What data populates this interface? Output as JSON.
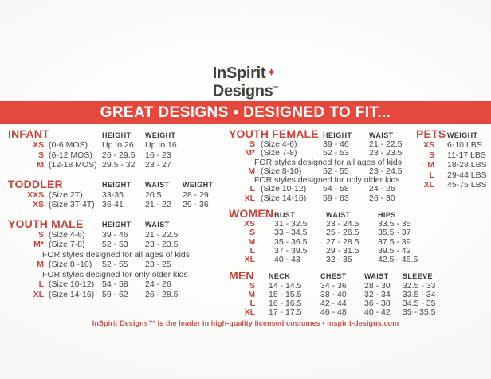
{
  "brand": {
    "line1": "InSpirit",
    "star": "✦",
    "line2": "Designs",
    "tm": "™"
  },
  "banner": {
    "text": "GREAT DESIGNS • DESIGNED TO FIT..."
  },
  "colors": {
    "banner_red": "#e5483c",
    "title_red": "#c3463d",
    "star_red": "#d6453a",
    "text_dark": "#4a4743",
    "head_dark": "#3a3733",
    "footer_red": "#c2564e",
    "logo_dark": "#44413d",
    "paper_light": "#fdfdfc",
    "paper_dark": "#f1f0ed"
  },
  "sections": [
    {
      "id": "infant",
      "title": "INFANT",
      "headers": [
        "HEIGHT",
        "WEIGHT"
      ],
      "rows": [
        {
          "size": "XS",
          "label": "(0-6 MOS)",
          "values": [
            "Up to 26",
            "Up to 16"
          ]
        },
        {
          "size": "S",
          "label": "(6-12 MOS)",
          "values": [
            "26 - 29.5",
            "16 - 23"
          ]
        },
        {
          "size": "M",
          "label": "(12-18 MOS)",
          "values": [
            "29.5 - 32",
            "23 - 27"
          ]
        }
      ]
    },
    {
      "id": "toddler",
      "title": "TODDLER",
      "headers": [
        "HEIGHT",
        "WAIST",
        "WEIGHT"
      ],
      "rows": [
        {
          "size": "XXS",
          "label": "(Size 2T)",
          "values": [
            "33-35",
            "20.5",
            "28 - 29"
          ]
        },
        {
          "size": "XS",
          "label": "(Size 3T-4T)",
          "values": [
            "36-41",
            "21 - 22",
            "29 - 36"
          ]
        }
      ]
    },
    {
      "id": "youth_male",
      "title": "YOUTH MALE",
      "headers": [
        "HEIGHT",
        "WAIST"
      ],
      "rows": [
        {
          "size": "S",
          "label": "(Size 4-6)",
          "values": [
            "39 - 46",
            "21 - 22.5"
          ]
        },
        {
          "size": "M*",
          "label": "(Size 7-8)",
          "values": [
            "52 - 53",
            "23 - 23.5"
          ]
        },
        {
          "note": "FOR styles designed for all ages of kids"
        },
        {
          "size": "M",
          "label": "(Size 8 -10)",
          "values": [
            "52 - 55",
            "23 - 25"
          ]
        },
        {
          "note": "FOR styles designed for only older kids"
        },
        {
          "size": "L",
          "label": "(Size 10-12)",
          "values": [
            "54 - 58",
            "24 - 26"
          ]
        },
        {
          "size": "XL",
          "label": "(Size 14-16)",
          "values": [
            "59 - 62",
            "26 - 28.5"
          ]
        }
      ]
    },
    {
      "id": "youth_female",
      "title": "YOUTH FEMALE",
      "headers": [
        "HEIGHT",
        "WAIST"
      ],
      "rows": [
        {
          "size": "S",
          "label": "(Size 4-6)",
          "values": [
            "39 - 46",
            "21 - 22.5"
          ]
        },
        {
          "size": "M*",
          "label": "(Size 7-8)",
          "values": [
            "52 - 53",
            "23 - 23.5"
          ]
        },
        {
          "note": "FOR styles designed for all ages of kids"
        },
        {
          "size": "M",
          "label": "(Size 8-10)",
          "values": [
            "52 - 55",
            "23 - 24.5"
          ]
        },
        {
          "note": "FOR styles designed for only older kids"
        },
        {
          "size": "L",
          "label": "(Size 10-12)",
          "values": [
            "54 - 58",
            "24 - 26"
          ]
        },
        {
          "size": "XL",
          "label": "(Size 14-16)",
          "values": [
            "59 - 63",
            "26 - 30"
          ]
        }
      ]
    },
    {
      "id": "women",
      "title": "WOMEN",
      "headers": [
        "BUST",
        "WAIST",
        "HIPS"
      ],
      "rows": [
        {
          "size": "XS",
          "values": [
            "31 - 32.5",
            "23 - 24.5",
            "33.5 - 35"
          ]
        },
        {
          "size": "S",
          "values": [
            "33 - 34.5",
            "25 - 26.5",
            "35.5 - 37"
          ]
        },
        {
          "size": "M",
          "values": [
            "35 - 36.5",
            "27 - 28.5",
            "37.5 - 39"
          ]
        },
        {
          "size": "L",
          "values": [
            "37 - 39.5",
            "29 - 31.5",
            "39.5 - 42"
          ]
        },
        {
          "size": "XL",
          "values": [
            "40 - 43",
            "32 - 35",
            "42.5 - 45.5"
          ]
        }
      ]
    },
    {
      "id": "men",
      "title": "MEN",
      "headers": [
        "NECK",
        "CHEST",
        "WAIST",
        "SLEEVE"
      ],
      "rows": [
        {
          "size": "S",
          "values": [
            "14 - 14.5",
            "34 - 36",
            "28 - 30",
            "32.5 - 33"
          ]
        },
        {
          "size": "M",
          "values": [
            "15 - 15.5",
            "38 - 40",
            "32 - 34",
            "33.5 - 34"
          ]
        },
        {
          "size": "L",
          "values": [
            "16 - 16.5",
            "42 - 44",
            "36 - 38",
            "34.5 - 35"
          ]
        },
        {
          "size": "XL",
          "values": [
            "17 - 17.5",
            "46 - 48",
            "40 - 42",
            "35 - 35.5"
          ]
        }
      ]
    },
    {
      "id": "pets",
      "title": "PETS",
      "headers": [
        "WEIGHT"
      ],
      "rows": [
        {
          "size": "XS",
          "values": [
            "6-10 LBS"
          ]
        },
        {
          "size": "S",
          "values": [
            "11-17 LBS"
          ]
        },
        {
          "size": "M",
          "values": [
            "18-28 LBS"
          ]
        },
        {
          "size": "L",
          "values": [
            "29-44 LBS"
          ]
        },
        {
          "size": "XL",
          "values": [
            "45-75 LBS"
          ]
        }
      ]
    }
  ],
  "footer": {
    "text": "InSpirit Designs™ is the leader in high-quality licensed costumes • inspirit-designs.com"
  }
}
